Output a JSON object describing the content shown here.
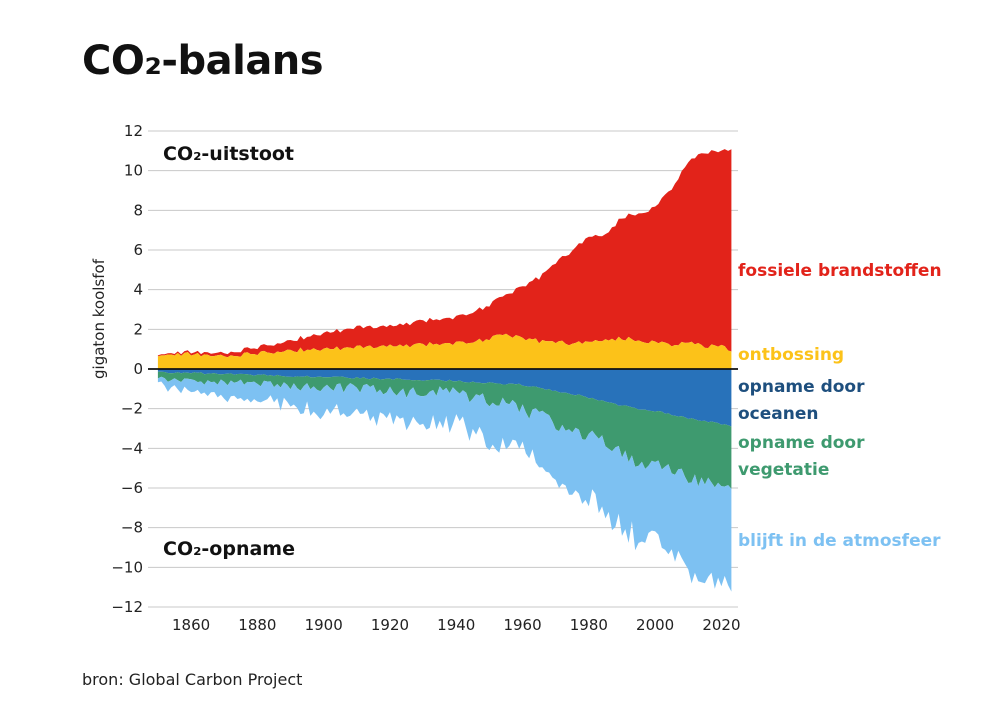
{
  "title": "CO₂-balans",
  "source": "bron: Global Carbon Project",
  "chart_data": {
    "type": "area",
    "ylabel": "gigaton koolsfof",
    "xlabel": "",
    "xlim": [
      1850,
      2023
    ],
    "ylim": [
      -12,
      12
    ],
    "x_ticks": [
      "1860",
      "1880",
      "1900",
      "1920",
      "1940",
      "1960",
      "1980",
      "2000",
      "2020"
    ],
    "y_ticks": [
      "12",
      "10",
      "8",
      "6",
      "4",
      "2",
      "0",
      "−2",
      "−4",
      "−6",
      "−8",
      "−10",
      "−12"
    ],
    "grid": true,
    "annotations": {
      "upper": "CO₂-uitstoot",
      "lower": "CO₂-opname"
    },
    "x": [
      1850,
      1860,
      1870,
      1880,
      1890,
      1900,
      1910,
      1920,
      1930,
      1940,
      1950,
      1955,
      1960,
      1965,
      1970,
      1975,
      1980,
      1985,
      1990,
      1995,
      2000,
      2005,
      2010,
      2015,
      2020,
      2023
    ],
    "series": [
      {
        "name": "fossiele brandstoffen",
        "color": "#e2231a",
        "values": [
          0.05,
          0.1,
          0.15,
          0.3,
          0.5,
          0.8,
          1.0,
          1.0,
          1.2,
          1.3,
          1.7,
          2.0,
          2.6,
          3.2,
          4.0,
          4.7,
          5.3,
          5.3,
          6.1,
          6.4,
          6.8,
          7.9,
          9.1,
          9.8,
          9.8,
          10.2
        ]
      },
      {
        "name": "ontbossing",
        "color": "#fcc219",
        "values": [
          0.7,
          0.75,
          0.65,
          0.8,
          0.95,
          1.0,
          1.1,
          1.15,
          1.25,
          1.3,
          1.5,
          1.75,
          1.6,
          1.4,
          1.35,
          1.3,
          1.35,
          1.45,
          1.55,
          1.45,
          1.35,
          1.25,
          1.35,
          1.15,
          1.1,
          1.0
        ]
      },
      {
        "name": "opname door oceanen",
        "color": "#2872ba",
        "values": [
          -0.15,
          -0.2,
          -0.25,
          -0.3,
          -0.35,
          -0.4,
          -0.45,
          -0.5,
          -0.55,
          -0.6,
          -0.7,
          -0.75,
          -0.8,
          -0.95,
          -1.1,
          -1.25,
          -1.45,
          -1.65,
          -1.85,
          -2.0,
          -2.1,
          -2.3,
          -2.5,
          -2.6,
          -2.8,
          -2.9
        ]
      },
      {
        "name": "opname door vegetatie",
        "color": "#3e9a6f",
        "values": [
          -0.3,
          -0.4,
          -0.4,
          -0.5,
          -0.5,
          -0.6,
          -0.5,
          -0.6,
          -0.7,
          -0.6,
          -0.9,
          -1.0,
          -1.2,
          -1.4,
          -1.7,
          -1.9,
          -1.9,
          -2.1,
          -2.4,
          -2.7,
          -2.6,
          -2.8,
          -3.0,
          -3.0,
          -3.3,
          -3.1
        ]
      },
      {
        "name": "blijft in de atmosfeer",
        "color": "#7dc1f2",
        "values": [
          -0.3,
          -0.5,
          -0.7,
          -0.8,
          -1.0,
          -1.2,
          -1.4,
          -1.4,
          -1.5,
          -1.6,
          -1.8,
          -2.0,
          -2.2,
          -2.5,
          -2.9,
          -3.0,
          -3.3,
          -3.5,
          -3.6,
          -3.8,
          -3.7,
          -4.2,
          -4.6,
          -4.9,
          -4.8,
          -5.1
        ]
      }
    ]
  }
}
